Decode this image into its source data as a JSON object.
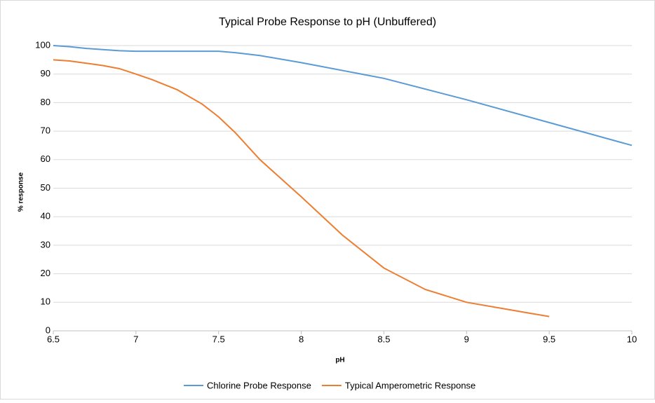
{
  "chart_data": {
    "type": "line",
    "title": "Typical Probe Response to pH (Unbuffered)",
    "x_label": "pH",
    "y_label": "% response",
    "xlim": [
      6.5,
      10
    ],
    "xticks": [
      6.5,
      7,
      7.5,
      8,
      8.5,
      9,
      9.5,
      10
    ],
    "ylim": [
      0,
      100
    ],
    "yticks": [
      0,
      10,
      20,
      30,
      40,
      50,
      60,
      70,
      80,
      90,
      100
    ],
    "grid": true,
    "legend": "bottom",
    "series": [
      {
        "name": "Chlorine Probe Response",
        "color": "#5b9bd5",
        "x": [
          6.5,
          6.6,
          6.7,
          6.8,
          6.9,
          7,
          7.5,
          7.6,
          7.75,
          8,
          8.5,
          9,
          9.5,
          10
        ],
        "values": [
          100,
          99.6,
          99,
          98.6,
          98.2,
          98,
          98,
          97.5,
          96.5,
          94,
          88.5,
          81,
          73,
          65
        ]
      },
      {
        "name": "Typical Amperometric Response",
        "color": "#ed7d31",
        "x": [
          6.5,
          6.6,
          6.7,
          6.8,
          6.9,
          7,
          7.1,
          7.25,
          7.4,
          7.5,
          7.6,
          7.75,
          8,
          8.25,
          8.5,
          8.75,
          9,
          9.25,
          9.4,
          9.5
        ],
        "values": [
          95,
          94.6,
          93.8,
          93,
          91.9,
          90,
          88,
          84.5,
          79.5,
          75,
          69.5,
          60,
          47,
          33.5,
          22,
          14.5,
          10,
          7.5,
          6,
          5
        ]
      }
    ]
  }
}
